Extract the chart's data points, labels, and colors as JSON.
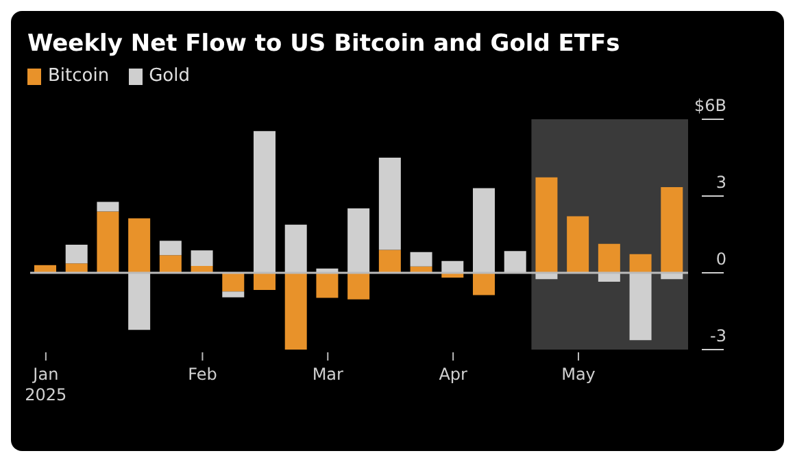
{
  "chart_data": {
    "type": "bar",
    "title": "Weekly Net Flow to US Bitcoin and Gold ETFs",
    "categories": [
      "Jan 2025",
      null,
      null,
      null,
      null,
      "Feb",
      null,
      null,
      null,
      "Mar",
      null,
      null,
      null,
      "Apr",
      null,
      null,
      null,
      "May",
      null,
      null,
      null
    ],
    "stacked": true,
    "series": [
      {
        "name": "Bitcoin",
        "color": "#e8922a",
        "values": [
          0.3,
          0.37,
          2.4,
          2.13,
          0.69,
          0.27,
          -0.73,
          -0.67,
          -3,
          -0.98,
          -1.04,
          0.9,
          0.25,
          -0.19,
          -0.87,
          null,
          3.73,
          2.21,
          1.13,
          0.73,
          3.35
        ]
      },
      {
        "name": "Gold",
        "color": "#cfcfcf",
        "values": [
          null,
          0.73,
          0.37,
          -2.23,
          0.56,
          0.61,
          -0.23,
          5.54,
          1.88,
          0.17,
          2.52,
          3.6,
          0.56,
          0.46,
          3.31,
          0.85,
          -0.25,
          null,
          -0.35,
          -2.63,
          -0.25
        ]
      }
    ],
    "ylim": [
      -3,
      6
    ],
    "yticks": [
      -3,
      0,
      3,
      {
        "value": 6,
        "label": "$6B"
      }
    ],
    "ref_lines": [
      {
        "axis": "y",
        "value": 0,
        "color": "#bbbbbb"
      }
    ],
    "legend": "top left"
  }
}
